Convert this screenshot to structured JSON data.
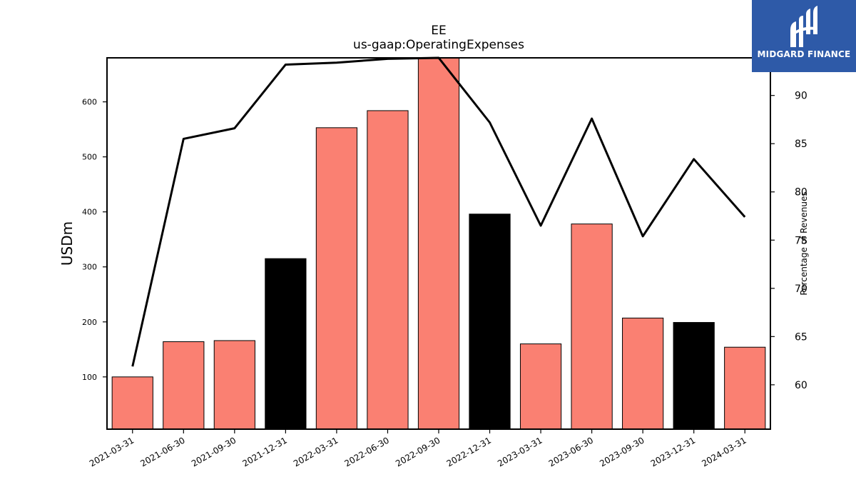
{
  "chart_data": {
    "type": "bar",
    "title": "EE",
    "subtitle": "us-gaap:OperatingExpenses",
    "ylabel": "USDm",
    "ylabel_right": "Percentage of Revenues",
    "categories": [
      "2021-03-31",
      "2021-06-30",
      "2021-09-30",
      "2021-12-31",
      "2022-03-31",
      "2022-06-30",
      "2022-09-30",
      "2022-12-31",
      "2023-03-31",
      "2023-06-30",
      "2023-09-30",
      "2023-12-31",
      "2024-03-31"
    ],
    "values": [
      100,
      164,
      166,
      315,
      553,
      584,
      680,
      396,
      160,
      378,
      207,
      199,
      154
    ],
    "bar_colors": [
      "#fa8072",
      "#fa8072",
      "#fa8072",
      "#000000",
      "#fa8072",
      "#fa8072",
      "#fa8072",
      "#000000",
      "#fa8072",
      "#fa8072",
      "#fa8072",
      "#000000",
      "#fa8072"
    ],
    "line_series": {
      "name": "Percentage of Revenues",
      "values": [
        61.9,
        85.5,
        86.6,
        93.2,
        93.4,
        93.8,
        93.9,
        87.2,
        76.5,
        87.6,
        75.4,
        83.4,
        77.4
      ],
      "color": "#000000"
    },
    "ylim": [
      5,
      680
    ],
    "ylim_right": [
      55.4,
      93.9
    ],
    "yticks": [
      100,
      200,
      300,
      400,
      500,
      600
    ],
    "yticks_right": [
      60,
      65,
      70,
      75,
      80,
      85,
      90
    ],
    "grid": false,
    "legend": "none"
  },
  "logo": {
    "text": "MIDGARD FINANCE",
    "background": "#2e5aa8",
    "icon": "midgard-logo-icon"
  }
}
